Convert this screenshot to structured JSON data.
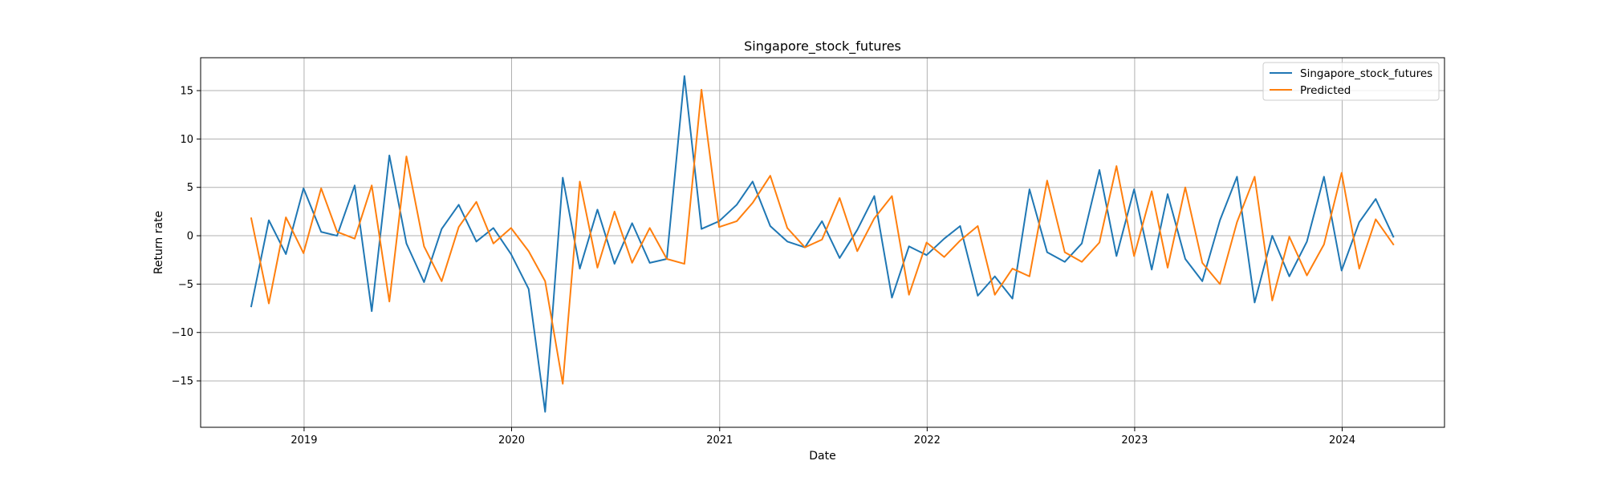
{
  "chart_data": {
    "type": "line",
    "title": "Singapore_stock_futures",
    "xlabel": "Date",
    "ylabel": "Return rate",
    "xlim": [
      "2018-07-03",
      "2024-06-29"
    ],
    "ylim": [
      -19.8,
      18.4
    ],
    "x_ticks": [
      "2019-01-01",
      "2020-01-01",
      "2021-01-01",
      "2022-01-01",
      "2023-01-01",
      "2024-01-01"
    ],
    "x_tick_labels": [
      "2019",
      "2020",
      "2021",
      "2022",
      "2023",
      "2024"
    ],
    "y_ticks": [
      -15,
      -10,
      -5,
      0,
      5,
      10,
      15
    ],
    "grid": true,
    "legend_position": "top-right",
    "x": [
      "2018-09-30",
      "2018-10-31",
      "2018-11-30",
      "2018-12-31",
      "2019-01-31",
      "2019-02-28",
      "2019-03-31",
      "2019-04-30",
      "2019-05-31",
      "2019-06-30",
      "2019-07-31",
      "2019-08-31",
      "2019-09-30",
      "2019-10-31",
      "2019-11-30",
      "2019-12-31",
      "2020-01-31",
      "2020-02-29",
      "2020-03-31",
      "2020-04-30",
      "2020-05-31",
      "2020-06-30",
      "2020-07-31",
      "2020-08-31",
      "2020-09-30",
      "2020-10-31",
      "2020-11-30",
      "2020-12-31",
      "2021-01-31",
      "2021-02-28",
      "2021-03-31",
      "2021-04-30",
      "2021-05-31",
      "2021-06-30",
      "2021-07-31",
      "2021-08-31",
      "2021-09-30",
      "2021-10-31",
      "2021-11-30",
      "2021-12-31",
      "2022-01-31",
      "2022-02-28",
      "2022-03-31",
      "2022-04-30",
      "2022-05-31",
      "2022-06-30",
      "2022-07-31",
      "2022-08-31",
      "2022-09-30",
      "2022-10-31",
      "2022-11-30",
      "2022-12-31",
      "2023-01-31",
      "2023-02-28",
      "2023-03-31",
      "2023-04-30",
      "2023-05-31",
      "2023-06-30",
      "2023-07-31",
      "2023-08-31",
      "2023-09-30",
      "2023-10-31",
      "2023-11-30",
      "2023-12-31",
      "2024-01-31",
      "2024-02-29",
      "2024-03-31"
    ],
    "series": [
      {
        "name": "Singapore_stock_futures",
        "color": "#1f77b4",
        "values": [
          -7.3,
          1.6,
          -1.9,
          4.9,
          0.4,
          0.0,
          5.2,
          -7.8,
          8.3,
          -0.8,
          -4.8,
          0.7,
          3.2,
          -0.6,
          0.8,
          -1.9,
          -5.5,
          -18.2,
          6.0,
          -3.4,
          2.7,
          -2.9,
          1.3,
          -2.8,
          -2.4,
          16.5,
          0.7,
          1.5,
          3.2,
          5.6,
          1.0,
          -0.6,
          -1.2,
          1.5,
          -2.3,
          0.6,
          4.1,
          -6.4,
          -1.1,
          -2.0,
          -0.3,
          1.0,
          -6.2,
          -4.2,
          -6.5,
          4.8,
          -1.7,
          -2.7,
          -0.8,
          6.8,
          -2.1,
          4.8,
          -3.5,
          4.3,
          -2.4,
          -4.7,
          1.6,
          6.1,
          -6.9,
          0.0,
          -4.2,
          -0.6,
          6.1,
          -3.6,
          1.4,
          3.8,
          -0.1
        ]
      },
      {
        "name": "Predicted",
        "color": "#ff7f0e",
        "values": [
          1.8,
          -7.0,
          1.9,
          -1.8,
          4.9,
          0.4,
          -0.3,
          5.2,
          -6.8,
          8.2,
          -1.1,
          -4.7,
          0.9,
          3.5,
          -0.8,
          0.8,
          -1.6,
          -4.7,
          -15.3,
          5.6,
          -3.3,
          2.5,
          -2.8,
          0.8,
          -2.4,
          -2.9,
          15.1,
          0.9,
          1.5,
          3.4,
          6.2,
          0.8,
          -1.2,
          -0.4,
          3.9,
          -1.6,
          1.8,
          4.1,
          -6.1,
          -0.7,
          -2.2,
          -0.5,
          1.0,
          -6.1,
          -3.4,
          -4.2,
          5.7,
          -1.7,
          -2.7,
          -0.7,
          7.2,
          -2.1,
          4.6,
          -3.3,
          5.0,
          -2.8,
          -5.0,
          1.4,
          6.1,
          -6.7,
          -0.1,
          -4.1,
          -0.9,
          6.5,
          -3.4,
          1.7,
          -0.9
        ]
      }
    ]
  }
}
